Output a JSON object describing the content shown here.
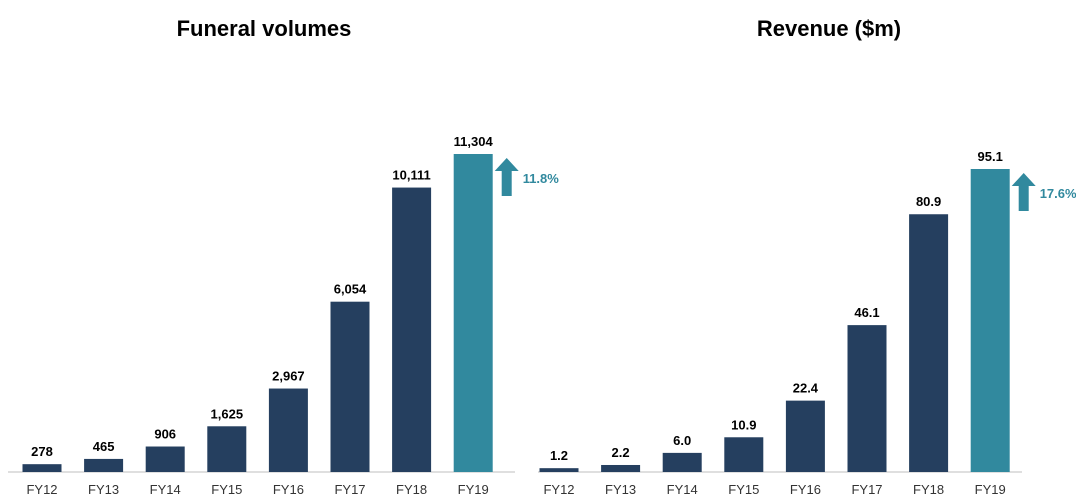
{
  "colors": {
    "bar": "#253f5f",
    "highlight": "#31899e",
    "axis": "#bfbfbf"
  },
  "chart_data": [
    {
      "type": "bar",
      "title": "Funeral volumes",
      "categories": [
        "FY12",
        "FY13",
        "FY14",
        "FY15",
        "FY16",
        "FY17",
        "FY18",
        "FY19"
      ],
      "values": [
        278,
        465,
        906,
        1625,
        2967,
        6054,
        10111,
        11304
      ],
      "value_labels": [
        "278",
        "465",
        "906",
        "1,625",
        "2,967",
        "6,054",
        "10,111",
        "11,304"
      ],
      "highlight_index": 7,
      "growth_label": "11.8%",
      "xlabel": "",
      "ylabel": "",
      "ylim": [
        0,
        11304
      ],
      "grid": false
    },
    {
      "type": "bar",
      "title": "Revenue ($m)",
      "categories": [
        "FY12",
        "FY13",
        "FY14",
        "FY15",
        "FY16",
        "FY17",
        "FY18",
        "FY19"
      ],
      "values": [
        1.2,
        2.2,
        6.0,
        10.9,
        22.4,
        46.1,
        80.9,
        95.1
      ],
      "value_labels": [
        "1.2",
        "2.2",
        "6.0",
        "10.9",
        "22.4",
        "46.1",
        "80.9",
        "95.1"
      ],
      "highlight_index": 7,
      "growth_label": "17.6%",
      "xlabel": "",
      "ylabel": "",
      "ylim": [
        0,
        95.1
      ],
      "grid": false
    }
  ]
}
